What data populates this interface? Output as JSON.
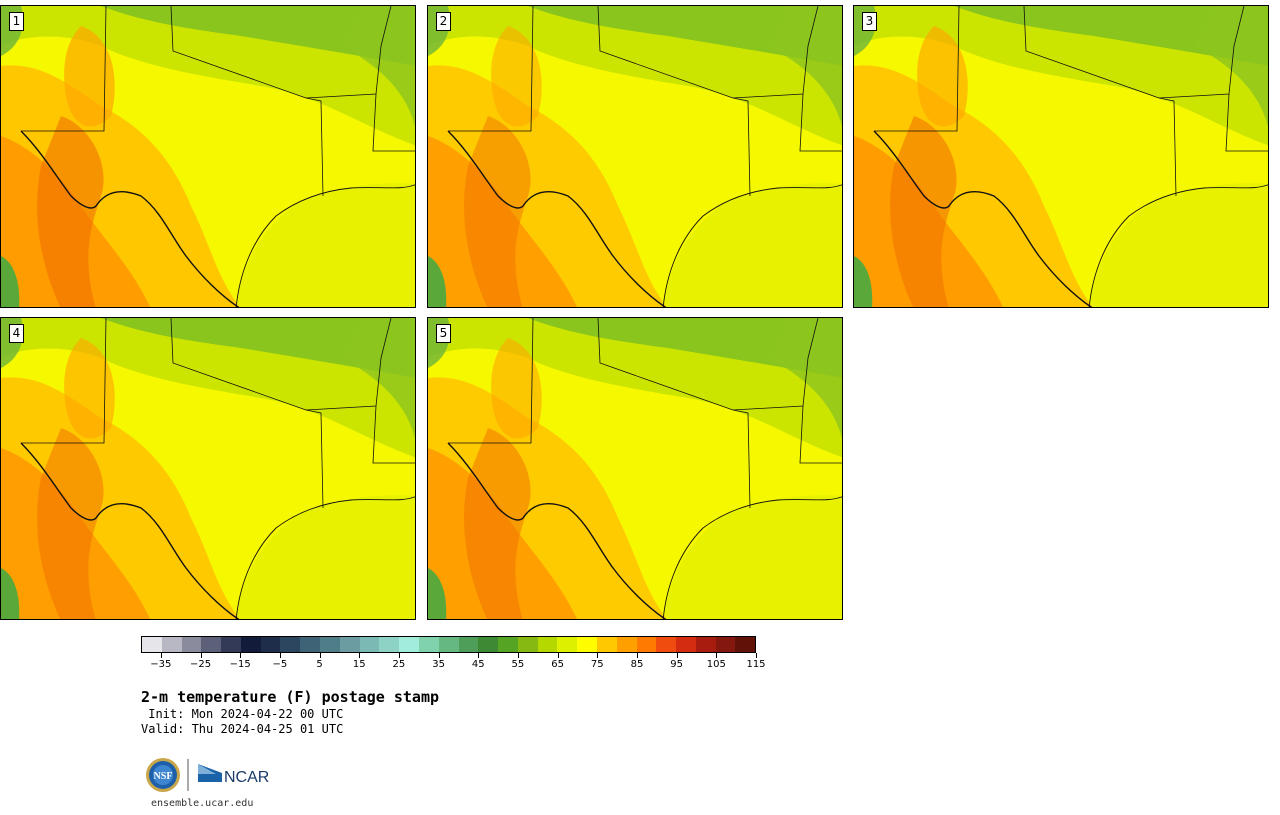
{
  "panels": [
    {
      "label": "1",
      "warmth": 1.0
    },
    {
      "label": "2",
      "warmth": 0.82
    },
    {
      "label": "3",
      "warmth": 0.95
    },
    {
      "label": "4",
      "warmth": 0.9
    },
    {
      "label": "5",
      "warmth": 0.85
    }
  ],
  "colorbar": {
    "colors": [
      "#e6e6ea",
      "#b8b8c4",
      "#8a8c9e",
      "#5c6078",
      "#323a58",
      "#121c3a",
      "#1e2e4a",
      "#2c4660",
      "#3e6276",
      "#4f7e88",
      "#6a9ca2",
      "#7ab9b4",
      "#8ed2c6",
      "#a2ecdc",
      "#80d2ac",
      "#64b880",
      "#4e9e5a",
      "#3c8a34",
      "#56a424",
      "#86ba12",
      "#b4d800",
      "#dcf000",
      "#fffd00",
      "#ffc800",
      "#ffa000",
      "#ff7a00",
      "#f04c10",
      "#d42c10",
      "#a81c10",
      "#84180e",
      "#601208"
    ],
    "ticks": [
      "−35",
      "−25",
      "−15",
      "−5",
      "5",
      "15",
      "25",
      "35",
      "45",
      "55",
      "65",
      "75",
      "85",
      "95",
      "105",
      "115"
    ]
  },
  "title": "2-m temperature (F) postage stamp",
  "init_text": " Init: Mon 2024-04-22 00 UTC",
  "valid_text": "Valid: Thu 2024-04-25 01 UTC",
  "logos": {
    "nsf": "NSF",
    "ncar": "NCAR"
  },
  "site": "ensemble.ucar.edu"
}
